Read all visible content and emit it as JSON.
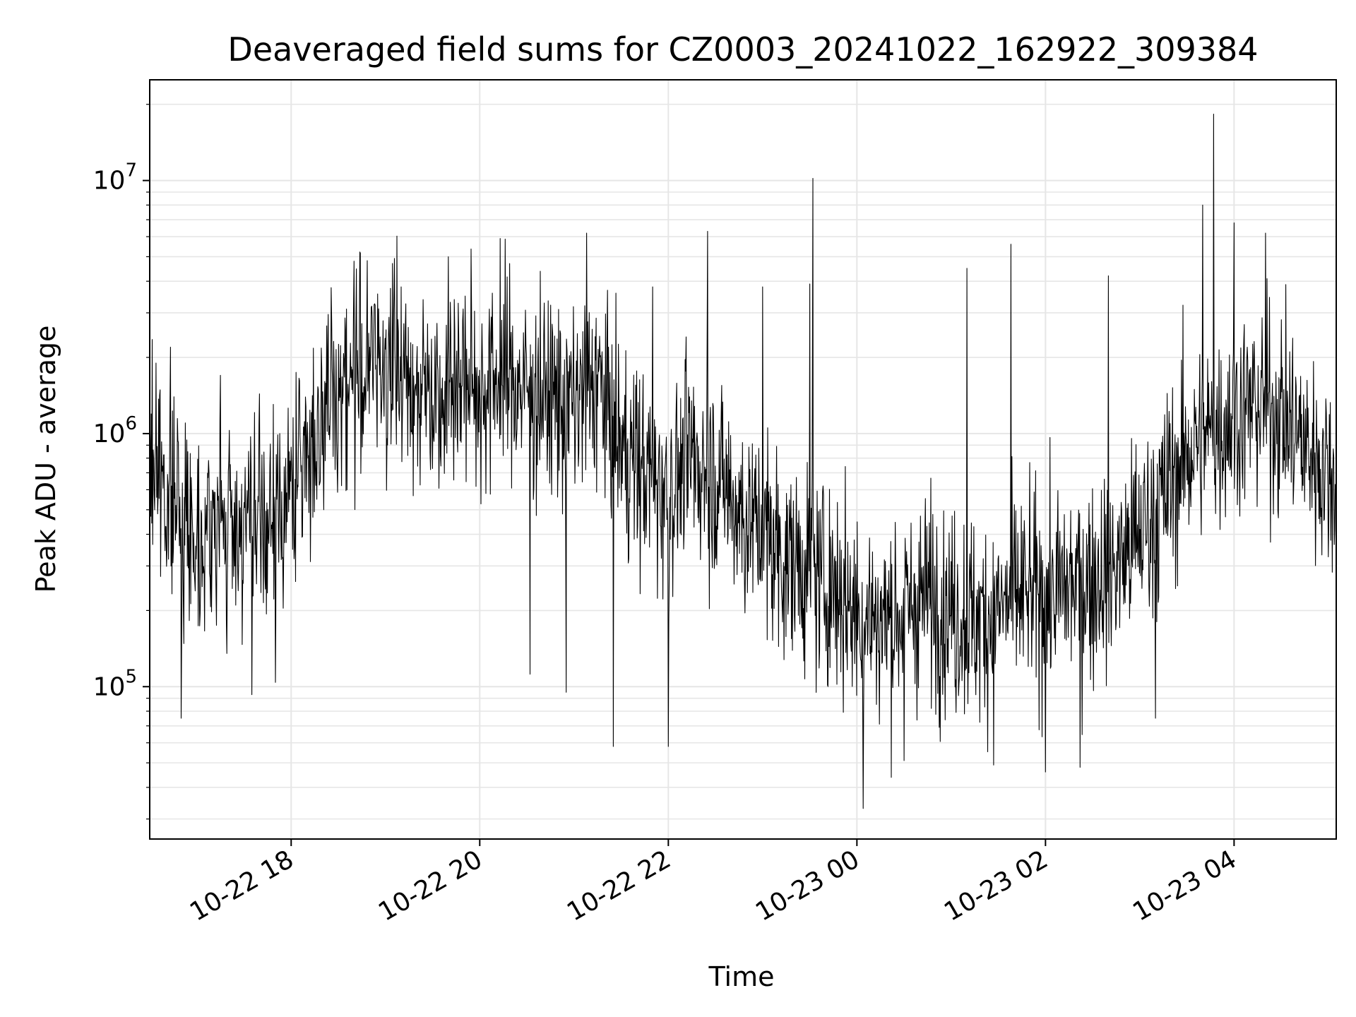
{
  "chart_data": {
    "type": "line",
    "title": "Deaveraged field sums for CZ0003_20241022_162922_309384",
    "xlabel": "Time",
    "ylabel": "Peak ADU - average",
    "yscale": "log",
    "ylim": [
      25000,
      25000000
    ],
    "xlim": [
      "2024-10-22 16:30",
      "2024-10-23 05:05"
    ],
    "grid": true,
    "line_color": "#000000",
    "grid_color": "#e6e6e6",
    "x_ticks": [
      {
        "value": "2024-10-22 18:00",
        "label": "10-22 18"
      },
      {
        "value": "2024-10-22 20:00",
        "label": "10-22 20"
      },
      {
        "value": "2024-10-22 22:00",
        "label": "10-22 22"
      },
      {
        "value": "2024-10-23 00:00",
        "label": "10-23 00"
      },
      {
        "value": "2024-10-23 02:00",
        "label": "10-23 02"
      },
      {
        "value": "2024-10-23 04:00",
        "label": "10-23 04"
      }
    ],
    "y_ticks": [
      {
        "value": 100000,
        "base": "10",
        "exp": "5"
      },
      {
        "value": 1000000,
        "base": "10",
        "exp": "6"
      },
      {
        "value": 10000000,
        "base": "10",
        "exp": "7"
      }
    ],
    "series": [
      {
        "x": [
          "2024-10-22 16:30",
          "2024-10-22 16:45",
          "2024-10-22 17:00",
          "2024-10-22 17:15",
          "2024-10-22 17:30",
          "2024-10-22 17:45",
          "2024-10-22 18:00",
          "2024-10-22 18:15",
          "2024-10-22 18:30",
          "2024-10-22 18:45",
          "2024-10-22 19:00",
          "2024-10-22 19:15",
          "2024-10-22 19:30",
          "2024-10-22 19:45",
          "2024-10-22 20:00",
          "2024-10-22 20:15",
          "2024-10-22 20:30",
          "2024-10-22 20:45",
          "2024-10-22 21:00",
          "2024-10-22 21:15",
          "2024-10-22 21:30",
          "2024-10-22 21:45",
          "2024-10-22 22:00",
          "2024-10-22 22:15",
          "2024-10-22 22:30",
          "2024-10-22 22:45",
          "2024-10-22 23:00",
          "2024-10-22 23:15",
          "2024-10-22 23:30",
          "2024-10-22 23:45",
          "2024-10-23 00:00",
          "2024-10-23 00:15",
          "2024-10-23 00:30",
          "2024-10-23 00:45",
          "2024-10-23 01:00",
          "2024-10-23 01:15",
          "2024-10-23 01:30",
          "2024-10-23 01:45",
          "2024-10-23 02:00",
          "2024-10-23 02:15",
          "2024-10-23 02:30",
          "2024-10-23 02:45",
          "2024-10-23 03:00",
          "2024-10-23 03:15",
          "2024-10-23 03:30",
          "2024-10-23 03:45",
          "2024-10-23 04:00",
          "2024-10-23 04:15",
          "2024-10-23 04:30",
          "2024-10-23 04:45",
          "2024-10-23 05:00"
        ],
        "y": [
          800000,
          550000,
          400000,
          420000,
          450000,
          400000,
          600000,
          1000000,
          1500000,
          1800000,
          2000000,
          1600000,
          1500000,
          1700000,
          1500000,
          1700000,
          1500000,
          1400000,
          1300000,
          1600000,
          900000,
          700000,
          600000,
          800000,
          700000,
          500000,
          400000,
          320000,
          280000,
          250000,
          200000,
          180000,
          200000,
          230000,
          200000,
          180000,
          200000,
          230000,
          220000,
          250000,
          270000,
          300000,
          400000,
          550000,
          850000,
          1000000,
          1200000,
          1300000,
          1200000,
          900000,
          700000
        ]
      }
    ],
    "peaks": [
      {
        "x": "2024-10-22 16:34",
        "y": 1900000
      },
      {
        "x": "2024-10-22 16:50",
        "y": 75000
      },
      {
        "x": "2024-10-22 17:15",
        "y": 1700000
      },
      {
        "x": "2024-10-22 17:35",
        "y": 93000
      },
      {
        "x": "2024-10-22 17:50",
        "y": 104000
      },
      {
        "x": "2024-10-22 18:40",
        "y": 4800000
      },
      {
        "x": "2024-10-22 19:10",
        "y": 3800000
      },
      {
        "x": "2024-10-22 19:40",
        "y": 5000000
      },
      {
        "x": "2024-10-22 20:13",
        "y": 5900000
      },
      {
        "x": "2024-10-22 20:32",
        "y": 112000
      },
      {
        "x": "2024-10-22 20:55",
        "y": 95000
      },
      {
        "x": "2024-10-22 21:08",
        "y": 6200000
      },
      {
        "x": "2024-10-22 21:25",
        "y": 58000
      },
      {
        "x": "2024-10-22 21:50",
        "y": 3800000
      },
      {
        "x": "2024-10-22 22:00",
        "y": 58000
      },
      {
        "x": "2024-10-22 22:25",
        "y": 6300000
      },
      {
        "x": "2024-10-22 23:00",
        "y": 3800000
      },
      {
        "x": "2024-10-22 23:30",
        "y": 3900000
      },
      {
        "x": "2024-10-22 23:32",
        "y": 10200000
      },
      {
        "x": "2024-10-23 00:04",
        "y": 33000
      },
      {
        "x": "2024-10-23 00:30",
        "y": 51000
      },
      {
        "x": "2024-10-23 01:10",
        "y": 4500000
      },
      {
        "x": "2024-10-23 01:27",
        "y": 49000
      },
      {
        "x": "2024-10-23 01:38",
        "y": 5600000
      },
      {
        "x": "2024-10-23 02:00",
        "y": 46000
      },
      {
        "x": "2024-10-23 02:22",
        "y": 48000
      },
      {
        "x": "2024-10-23 02:40",
        "y": 4200000
      },
      {
        "x": "2024-10-23 03:10",
        "y": 75000
      },
      {
        "x": "2024-10-23 03:40",
        "y": 8000000
      },
      {
        "x": "2024-10-23 03:47",
        "y": 18300000
      },
      {
        "x": "2024-10-23 04:00",
        "y": 6800000
      },
      {
        "x": "2024-10-23 04:20",
        "y": 6200000
      }
    ]
  }
}
